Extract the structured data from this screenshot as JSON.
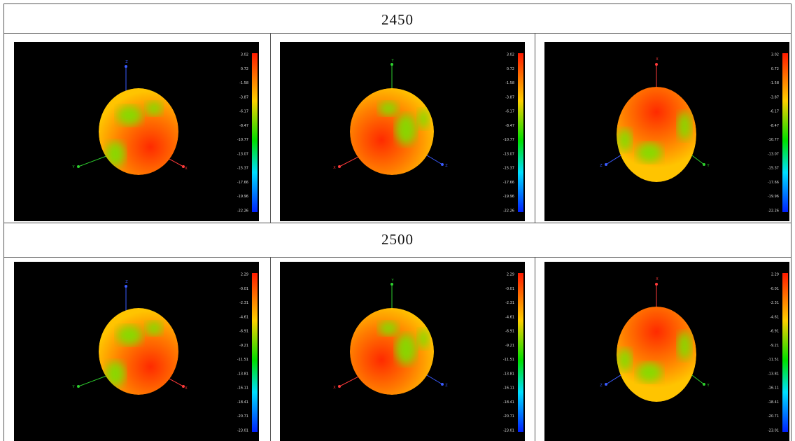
{
  "sections": [
    {
      "title": "2450",
      "scale": [
        "3.02",
        "0.72",
        "-1.58",
        "-3.87",
        "-6.17",
        "-8.47",
        "-10.77",
        "-13.07",
        "-15.37",
        "-17.66",
        "-19.96",
        "-22.26"
      ]
    },
    {
      "title": "2500",
      "scale": [
        "2.29",
        "-0.01",
        "-2.31",
        "-4.61",
        "-6.91",
        "-9.21",
        "-11.51",
        "-13.81",
        "-16.11",
        "-18.41",
        "-20.71",
        "-23.01"
      ]
    }
  ],
  "views": [
    {
      "axes": [
        "Z",
        "Y",
        "X"
      ]
    },
    {
      "axes": [
        "Y",
        "X",
        "Z"
      ]
    },
    {
      "axes": [
        "X",
        "Z",
        "Y"
      ]
    }
  ]
}
